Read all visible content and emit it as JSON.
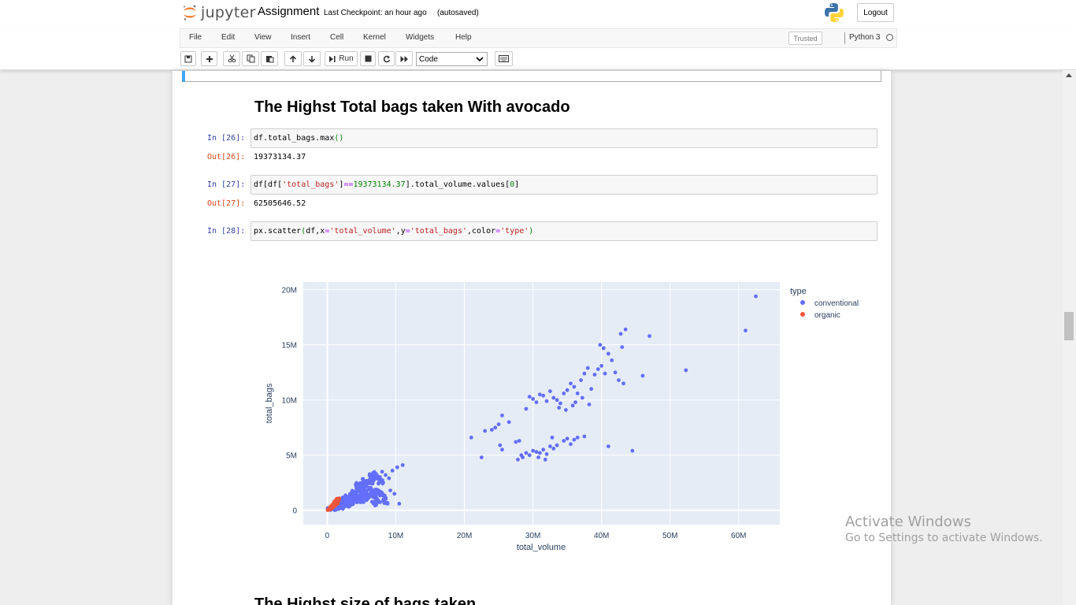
{
  "header": {
    "logo_text": "jupyter",
    "notebook_name": "Assignment",
    "checkpoint": "Last Checkpoint: an hour ago",
    "autosaved": "(autosaved)",
    "logout_label": "Logout"
  },
  "menubar": {
    "items": [
      "File",
      "Edit",
      "View",
      "Insert",
      "Cell",
      "Kernel",
      "Widgets",
      "Help"
    ],
    "trusted_label": "Trusted",
    "kernel_name": "Python 3"
  },
  "toolbar": {
    "run_label": "Run",
    "cell_type": "Code"
  },
  "cells": {
    "heading1": "The Highst Total bags taken With avocado",
    "in26_prompt": "In [26]:",
    "in26_code": "df.total_bags.max()",
    "out26_prompt": "Out[26]:",
    "out26_value": "19373134.37",
    "in27_prompt": "In [27]:",
    "in27_code": "df[df['total_bags']==19373134.37].total_volume.values[0]",
    "out27_prompt": "Out[27]:",
    "out27_value": "62505646.52",
    "in28_prompt": "In [28]:",
    "in28_code": "px.scatter(df,x='total_volume',y='total_bags',color='type')",
    "heading2": "The Highst size of bags taken"
  },
  "chart_data": {
    "type": "scatter",
    "xlabel": "total_volume",
    "ylabel": "total_bags",
    "xlim": [
      -3500000,
      66000000
    ],
    "ylim": [
      -1300000,
      20700000
    ],
    "x_ticks": [
      0,
      10000000,
      20000000,
      30000000,
      40000000,
      50000000,
      60000000
    ],
    "x_tick_labels": [
      "0",
      "10M",
      "20M",
      "30M",
      "40M",
      "50M",
      "60M"
    ],
    "y_ticks": [
      0,
      5000000,
      10000000,
      15000000,
      20000000
    ],
    "y_tick_labels": [
      "0",
      "5M",
      "10M",
      "15M",
      "20M"
    ],
    "grid": true,
    "legend_title": "type",
    "legend_position": "top-right",
    "series": [
      {
        "name": "conventional",
        "color": "#636efa",
        "dense_cluster": [
          [
            0.3,
            0.05
          ],
          [
            0.6,
            0.12
          ],
          [
            0.9,
            0.2
          ],
          [
            1.2,
            0.28
          ],
          [
            1.5,
            0.35
          ],
          [
            1.8,
            0.42
          ],
          [
            2.1,
            0.5
          ],
          [
            2.4,
            0.55
          ],
          [
            2.7,
            0.62
          ],
          [
            3.0,
            0.7
          ],
          [
            3.3,
            0.78
          ],
          [
            3.6,
            0.85
          ],
          [
            3.9,
            0.92
          ],
          [
            4.2,
            1.0
          ],
          [
            4.5,
            1.08
          ],
          [
            4.8,
            1.15
          ],
          [
            5.1,
            1.22
          ],
          [
            5.4,
            1.3
          ],
          [
            5.7,
            1.35
          ],
          [
            6.0,
            1.42
          ],
          [
            6.3,
            1.5
          ],
          [
            6.6,
            1.55
          ],
          [
            6.9,
            1.6
          ],
          [
            7.2,
            1.7
          ],
          [
            1.0,
            0.4
          ],
          [
            1.5,
            0.6
          ],
          [
            2.0,
            0.8
          ],
          [
            2.5,
            1.0
          ],
          [
            3.0,
            1.2
          ],
          [
            3.5,
            1.4
          ],
          [
            4.0,
            1.6
          ],
          [
            4.5,
            1.8
          ],
          [
            5.0,
            2.0
          ],
          [
            5.5,
            2.2
          ],
          [
            6.0,
            2.4
          ],
          [
            6.5,
            2.6
          ],
          [
            7.0,
            2.8
          ],
          [
            7.5,
            3.0
          ],
          [
            2.0,
            0.3
          ],
          [
            3.0,
            0.5
          ],
          [
            4.0,
            0.7
          ],
          [
            5.0,
            0.9
          ],
          [
            6.0,
            1.1
          ],
          [
            7.0,
            1.3
          ],
          [
            8.0,
            1.5
          ],
          [
            4.5,
            2.3
          ],
          [
            5.5,
            2.7
          ],
          [
            6.5,
            3.1
          ],
          [
            7.0,
            3.3
          ],
          [
            7.8,
            2.6
          ],
          [
            6.2,
            1.9
          ],
          [
            5.2,
            1.6
          ],
          [
            4.2,
            1.3
          ],
          [
            3.2,
            1.0
          ],
          [
            2.2,
            0.7
          ],
          [
            1.2,
            0.2
          ],
          [
            8.2,
            1.2
          ],
          [
            8.5,
            0.8
          ],
          [
            7.5,
            0.9
          ],
          [
            6.8,
            0.6
          ]
        ],
        "points": [
          [
            8.5,
            3.2
          ],
          [
            9.0,
            2.9
          ],
          [
            9.5,
            3.6
          ],
          [
            10.2,
            3.9
          ],
          [
            11.0,
            4.1
          ],
          [
            9.8,
            1.5
          ],
          [
            10.5,
            0.6
          ],
          [
            8.8,
            0.6
          ],
          [
            9.2,
            1.8
          ],
          [
            8.0,
            3.5
          ],
          [
            21.0,
            6.6
          ],
          [
            22.5,
            4.8
          ],
          [
            23.0,
            7.2
          ],
          [
            24.5,
            7.5
          ],
          [
            25.0,
            7.8
          ],
          [
            25.5,
            8.6
          ],
          [
            26.5,
            8.0
          ],
          [
            24.0,
            7.3
          ],
          [
            25.2,
            5.9
          ],
          [
            25.5,
            5.5
          ],
          [
            27.5,
            6.2
          ],
          [
            27.8,
            4.6
          ],
          [
            28.5,
            4.8
          ],
          [
            28.0,
            6.3
          ],
          [
            28.3,
            5.0
          ],
          [
            29.0,
            5.2
          ],
          [
            29.5,
            5.0
          ],
          [
            30.0,
            5.4
          ],
          [
            30.5,
            5.3
          ],
          [
            31.0,
            5.2
          ],
          [
            31.5,
            5.5
          ],
          [
            32.0,
            5.1
          ],
          [
            32.5,
            5.8
          ],
          [
            33.0,
            5.6
          ],
          [
            33.5,
            5.9
          ],
          [
            30.8,
            4.8
          ],
          [
            31.8,
            4.6
          ],
          [
            32.8,
            6.6
          ],
          [
            35.0,
            6.5
          ],
          [
            36.0,
            6.4
          ],
          [
            36.5,
            6.6
          ],
          [
            37.5,
            6.7
          ],
          [
            34.5,
            6.3
          ],
          [
            35.5,
            6.0
          ],
          [
            29.0,
            9.2
          ],
          [
            29.5,
            10.3
          ],
          [
            30.0,
            10.1
          ],
          [
            30.5,
            9.8
          ],
          [
            31.0,
            10.5
          ],
          [
            31.5,
            10.4
          ],
          [
            32.0,
            9.9
          ],
          [
            32.5,
            10.8
          ],
          [
            33.0,
            10.2
          ],
          [
            33.5,
            10.0
          ],
          [
            34.0,
            9.7
          ],
          [
            34.5,
            10.6
          ],
          [
            35.0,
            10.9
          ],
          [
            35.5,
            11.5
          ],
          [
            36.0,
            11.2
          ],
          [
            36.5,
            10.6
          ],
          [
            37.0,
            11.8
          ],
          [
            37.5,
            12.4
          ],
          [
            38.0,
            12.9
          ],
          [
            38.5,
            11.0
          ],
          [
            39.0,
            12.3
          ],
          [
            39.5,
            12.8
          ],
          [
            40.0,
            13.1
          ],
          [
            40.5,
            12.4
          ],
          [
            41.0,
            14.2
          ],
          [
            41.5,
            13.6
          ],
          [
            42.0,
            12.5
          ],
          [
            42.5,
            11.8
          ],
          [
            43.0,
            14.8
          ],
          [
            43.5,
            16.4
          ],
          [
            39.8,
            15.0
          ],
          [
            40.3,
            14.7
          ],
          [
            42.8,
            16.0
          ],
          [
            47.0,
            15.8
          ],
          [
            46.0,
            12.2
          ],
          [
            43.2,
            11.5
          ],
          [
            36.2,
            9.8
          ],
          [
            37.2,
            10.2
          ],
          [
            38.2,
            9.6
          ],
          [
            33.8,
            9.3
          ],
          [
            34.8,
            9.1
          ],
          [
            35.8,
            9.5
          ],
          [
            41.0,
            5.8
          ],
          [
            44.5,
            5.4
          ],
          [
            52.3,
            12.7
          ],
          [
            61.0,
            16.3
          ],
          [
            62.5,
            19.4
          ]
        ]
      },
      {
        "name": "organic",
        "color": "#ef553b",
        "points": [
          [
            0.05,
            0.02
          ],
          [
            0.1,
            0.05
          ],
          [
            0.15,
            0.08
          ],
          [
            0.2,
            0.1
          ],
          [
            0.25,
            0.12
          ],
          [
            0.3,
            0.15
          ],
          [
            0.35,
            0.18
          ],
          [
            0.4,
            0.2
          ],
          [
            0.45,
            0.25
          ],
          [
            0.5,
            0.28
          ],
          [
            0.55,
            0.3
          ],
          [
            0.6,
            0.33
          ],
          [
            0.65,
            0.36
          ],
          [
            0.7,
            0.4
          ],
          [
            0.75,
            0.42
          ],
          [
            0.8,
            0.45
          ],
          [
            0.85,
            0.5
          ],
          [
            0.9,
            0.52
          ],
          [
            0.95,
            0.56
          ],
          [
            1.0,
            0.6
          ],
          [
            1.05,
            0.63
          ],
          [
            1.1,
            0.66
          ],
          [
            1.15,
            0.7
          ],
          [
            1.2,
            0.74
          ],
          [
            1.25,
            0.78
          ],
          [
            1.3,
            0.8
          ],
          [
            1.35,
            0.85
          ],
          [
            1.4,
            0.9
          ],
          [
            1.45,
            0.95
          ],
          [
            1.5,
            1.0
          ],
          [
            1.55,
            1.05
          ],
          [
            1.6,
            1.02
          ],
          [
            0.3,
            0.05
          ],
          [
            0.5,
            0.1
          ],
          [
            0.7,
            0.2
          ],
          [
            0.9,
            0.3
          ],
          [
            1.1,
            0.4
          ],
          [
            1.3,
            0.5
          ],
          [
            1.5,
            0.6
          ],
          [
            0.4,
            0.3
          ],
          [
            0.6,
            0.4
          ],
          [
            0.8,
            0.55
          ],
          [
            1.0,
            0.75
          ],
          [
            1.2,
            0.9
          ],
          [
            1.4,
            1.05
          ],
          [
            1.6,
            0.8
          ],
          [
            1.7,
            0.95
          ],
          [
            1.75,
            1.08
          ]
        ]
      }
    ]
  }
}
